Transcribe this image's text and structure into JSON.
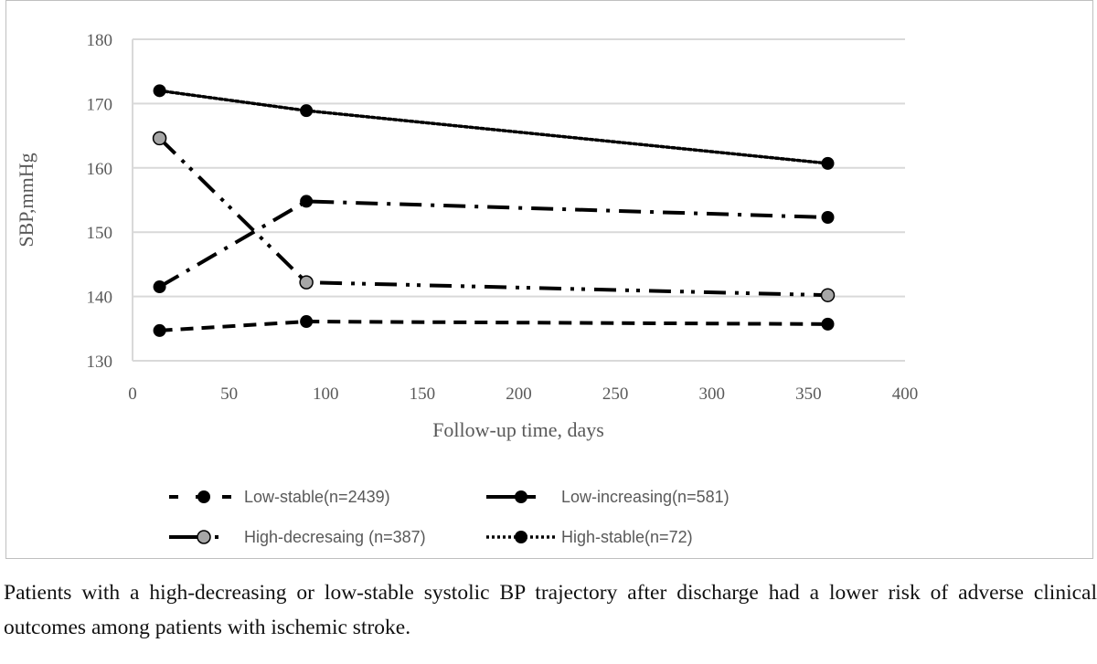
{
  "chart_data": {
    "type": "line",
    "title": "",
    "xlabel": "Follow-up time, days",
    "ylabel": "SBP,mmHg",
    "xlim": [
      0,
      400
    ],
    "ylim": [
      130,
      180
    ],
    "xticks": [
      0,
      50,
      100,
      150,
      200,
      250,
      300,
      350,
      400
    ],
    "yticks": [
      130,
      140,
      150,
      160,
      170,
      180
    ],
    "grid": "horizontal",
    "legend_position": "bottom",
    "x": [
      14,
      90,
      360
    ],
    "series": [
      {
        "name": "Low-stable(n=2439)",
        "values": [
          134.7,
          136.1,
          135.7
        ],
        "dash": "dash",
        "marker_color": "#000000"
      },
      {
        "name": "Low-increasing(n=581)",
        "values": [
          141.5,
          154.8,
          152.3
        ],
        "dash": "longdashdot",
        "marker_color": "#000000"
      },
      {
        "name": "High-decresaing (n=387)",
        "values": [
          164.6,
          142.2,
          140.2
        ],
        "dash": "longdashdotdot",
        "marker_color": "#a6a6a6"
      },
      {
        "name": "High-stable(n=72)",
        "values": [
          172.0,
          168.9,
          160.7
        ],
        "dash": "dot",
        "marker_color": "#000000"
      }
    ]
  },
  "caption": "Patients with a high-decreasing or low-stable systolic BP trajectory after discharge had a lower risk of adverse clinical outcomes among patients with ischemic stroke."
}
